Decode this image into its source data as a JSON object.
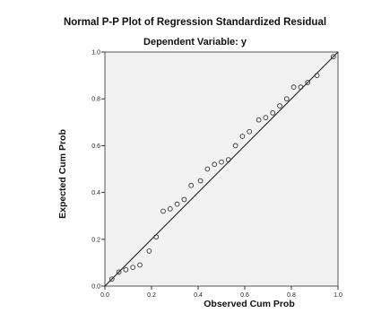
{
  "chart_data": {
    "type": "scatter",
    "title": "Normal P-P Plot of Regression Standardized Residual",
    "subtitle": "Dependent Variable: y",
    "xlabel": "Observed Cum Prob",
    "ylabel": "Expected Cum Prob",
    "xlim": [
      0,
      1
    ],
    "ylim": [
      0,
      1
    ],
    "xticks": [
      "0.0",
      "0.2",
      "0.4",
      "0.6",
      "0.8",
      "1.0"
    ],
    "yticks": [
      "0.0",
      "0.2",
      "0.4",
      "0.6",
      "0.8",
      "1.0"
    ],
    "reference_line": [
      [
        0,
        0
      ],
      [
        1,
        1
      ]
    ],
    "points": [
      {
        "x": 0.03,
        "y": 0.03
      },
      {
        "x": 0.06,
        "y": 0.06
      },
      {
        "x": 0.09,
        "y": 0.07
      },
      {
        "x": 0.12,
        "y": 0.08
      },
      {
        "x": 0.15,
        "y": 0.09
      },
      {
        "x": 0.19,
        "y": 0.15
      },
      {
        "x": 0.22,
        "y": 0.21
      },
      {
        "x": 0.25,
        "y": 0.32
      },
      {
        "x": 0.28,
        "y": 0.33
      },
      {
        "x": 0.31,
        "y": 0.35
      },
      {
        "x": 0.34,
        "y": 0.37
      },
      {
        "x": 0.37,
        "y": 0.43
      },
      {
        "x": 0.41,
        "y": 0.45
      },
      {
        "x": 0.44,
        "y": 0.5
      },
      {
        "x": 0.47,
        "y": 0.52
      },
      {
        "x": 0.5,
        "y": 0.53
      },
      {
        "x": 0.53,
        "y": 0.54
      },
      {
        "x": 0.56,
        "y": 0.6
      },
      {
        "x": 0.59,
        "y": 0.64
      },
      {
        "x": 0.62,
        "y": 0.66
      },
      {
        "x": 0.66,
        "y": 0.71
      },
      {
        "x": 0.69,
        "y": 0.72
      },
      {
        "x": 0.72,
        "y": 0.74
      },
      {
        "x": 0.75,
        "y": 0.77
      },
      {
        "x": 0.78,
        "y": 0.8
      },
      {
        "x": 0.81,
        "y": 0.85
      },
      {
        "x": 0.84,
        "y": 0.85
      },
      {
        "x": 0.87,
        "y": 0.87
      },
      {
        "x": 0.91,
        "y": 0.9
      },
      {
        "x": 0.98,
        "y": 0.98
      }
    ],
    "grid": false,
    "plot_background": "#f2f2f2",
    "marker_color": "#333333",
    "line_color": "#222222"
  }
}
